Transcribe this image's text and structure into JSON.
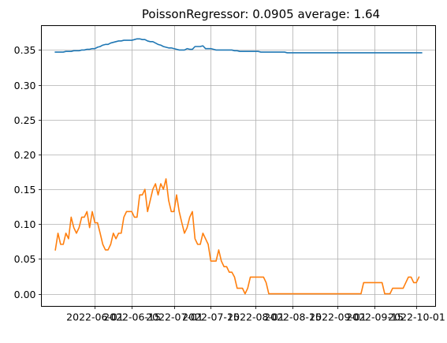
{
  "chart_data": {
    "type": "line",
    "title": "PoissonRegressor: 0.0905 average: 1.64",
    "xlabel": "",
    "ylabel": "",
    "grid": true,
    "x_start": "2022-05-17",
    "x_step_days": 1,
    "x_tick_labels": [
      "2022-06-01",
      "2022-06-15",
      "2022-07-01",
      "2022-07-15",
      "2022-08-01",
      "2022-08-15",
      "2022-09-01",
      "2022-09-15",
      "2022-10-01"
    ],
    "x_tick_dates": [
      "2022-06-01",
      "2022-06-15",
      "2022-07-01",
      "2022-07-15",
      "2022-08-01",
      "2022-08-15",
      "2022-09-01",
      "2022-09-15",
      "2022-10-01"
    ],
    "ylim": [
      -0.018,
      0.385
    ],
    "y_ticks": [
      0.0,
      0.05,
      0.1,
      0.15,
      0.2,
      0.25,
      0.3,
      0.35
    ],
    "y_tick_labels": [
      "0.00",
      "0.05",
      "0.10",
      "0.15",
      "0.20",
      "0.25",
      "0.30",
      "0.35"
    ],
    "series": [
      {
        "color": "#1f77b4",
        "values": [
          0.347,
          0.347,
          0.347,
          0.347,
          0.348,
          0.348,
          0.348,
          0.349,
          0.349,
          0.349,
          0.35,
          0.35,
          0.351,
          0.351,
          0.352,
          0.352,
          0.354,
          0.355,
          0.357,
          0.358,
          0.358,
          0.36,
          0.361,
          0.362,
          0.363,
          0.363,
          0.364,
          0.364,
          0.364,
          0.364,
          0.365,
          0.366,
          0.366,
          0.365,
          0.365,
          0.363,
          0.362,
          0.362,
          0.36,
          0.358,
          0.357,
          0.355,
          0.354,
          0.353,
          0.353,
          0.352,
          0.351,
          0.35,
          0.35,
          0.35,
          0.352,
          0.351,
          0.351,
          0.355,
          0.355,
          0.355,
          0.356,
          0.352,
          0.352,
          0.352,
          0.351,
          0.35,
          0.35,
          0.35,
          0.35,
          0.35,
          0.35,
          0.35,
          0.349,
          0.349,
          0.348,
          0.348,
          0.348,
          0.348,
          0.348,
          0.348,
          0.348,
          0.348,
          0.347,
          0.347,
          0.347,
          0.347,
          0.347,
          0.347,
          0.347,
          0.347,
          0.347,
          0.347,
          0.346,
          0.346,
          0.346,
          0.346,
          0.346,
          0.346,
          0.346,
          0.346,
          0.346,
          0.346,
          0.346,
          0.346,
          0.346,
          0.346,
          0.346,
          0.346,
          0.346,
          0.346,
          0.346,
          0.346,
          0.346,
          0.346,
          0.346,
          0.346,
          0.346,
          0.346,
          0.346,
          0.346,
          0.346,
          0.346,
          0.346,
          0.346,
          0.346,
          0.346,
          0.346,
          0.346,
          0.346,
          0.346,
          0.346,
          0.346,
          0.346,
          0.346,
          0.346,
          0.346,
          0.346,
          0.346,
          0.346,
          0.346,
          0.346,
          0.346,
          0.346,
          0.346
        ]
      },
      {
        "color": "#ff7f0e",
        "values": [
          0.063,
          0.087,
          0.071,
          0.071,
          0.087,
          0.079,
          0.11,
          0.095,
          0.087,
          0.095,
          0.11,
          0.11,
          0.118,
          0.095,
          0.118,
          0.102,
          0.102,
          0.087,
          0.071,
          0.063,
          0.063,
          0.071,
          0.087,
          0.079,
          0.087,
          0.087,
          0.11,
          0.118,
          0.118,
          0.118,
          0.11,
          0.11,
          0.142,
          0.142,
          0.15,
          0.118,
          0.134,
          0.15,
          0.158,
          0.142,
          0.158,
          0.15,
          0.165,
          0.134,
          0.118,
          0.118,
          0.142,
          0.118,
          0.102,
          0.087,
          0.095,
          0.11,
          0.118,
          0.079,
          0.071,
          0.071,
          0.087,
          0.079,
          0.071,
          0.047,
          0.047,
          0.047,
          0.063,
          0.047,
          0.039,
          0.039,
          0.031,
          0.031,
          0.024,
          0.008,
          0.008,
          0.008,
          0.0,
          0.008,
          0.024,
          0.024,
          0.024,
          0.024,
          0.024,
          0.024,
          0.016,
          0.0,
          0.0,
          0.0,
          0.0,
          0.0,
          0.0,
          0.0,
          0.0,
          0.0,
          0.0,
          0.0,
          0.0,
          0.0,
          0.0,
          0.0,
          0.0,
          0.0,
          0.0,
          0.0,
          0.0,
          0.0,
          0.0,
          0.0,
          0.0,
          0.0,
          0.0,
          0.0,
          0.0,
          0.0,
          0.0,
          0.0,
          0.0,
          0.0,
          0.0,
          0.0,
          0.0,
          0.016,
          0.016,
          0.016,
          0.016,
          0.016,
          0.016,
          0.016,
          0.016,
          0.0,
          0.0,
          0.0,
          0.008,
          0.008,
          0.008,
          0.008,
          0.008,
          0.016,
          0.024,
          0.024,
          0.016,
          0.016,
          0.024
        ]
      }
    ]
  }
}
